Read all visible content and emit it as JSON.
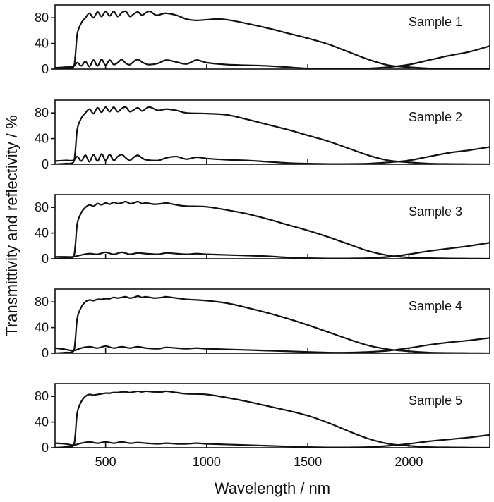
{
  "chart_data": {
    "type": "line",
    "xlabel": "Wavelength / nm",
    "ylabel": "Transmittivity and reflectivity / %",
    "xlim": [
      250,
      2400
    ],
    "ylim": [
      0,
      100
    ],
    "xticks": [
      500,
      1000,
      1500,
      2000
    ],
    "yticks": [
      0,
      40,
      80
    ],
    "grid": false,
    "panels": [
      {
        "label": "Sample 1",
        "transmittance": {
          "x": [
            250,
            300,
            340,
            350,
            360,
            380,
            400,
            420,
            440,
            460,
            480,
            500,
            520,
            540,
            560,
            580,
            600,
            620,
            640,
            660,
            680,
            700,
            720,
            750,
            780,
            800,
            850,
            900,
            950,
            1000,
            1050,
            1100,
            1200,
            1300,
            1400,
            1500,
            1600,
            1700,
            1800,
            1900,
            2000,
            2100,
            2200,
            2300,
            2400
          ],
          "y": [
            0,
            1,
            3,
            20,
            55,
            72,
            80,
            87,
            80,
            89,
            82,
            90,
            83,
            90,
            82,
            88,
            90,
            82,
            86,
            89,
            84,
            88,
            90,
            84,
            86,
            87,
            84,
            78,
            76,
            77,
            78,
            77,
            71,
            64,
            56,
            48,
            39,
            27,
            15,
            6,
            3,
            1,
            0.5,
            0.2,
            0
          ]
        },
        "reflectance": {
          "x": [
            250,
            300,
            340,
            360,
            380,
            400,
            420,
            440,
            460,
            480,
            500,
            520,
            540,
            560,
            580,
            600,
            620,
            640,
            660,
            680,
            700,
            720,
            760,
            800,
            850,
            900,
            950,
            1000,
            1100,
            1200,
            1300,
            1400,
            1500,
            1600,
            1700,
            1800,
            1900,
            2000,
            2100,
            2200,
            2300,
            2400
          ],
          "y": [
            2,
            3,
            4,
            10,
            5,
            12,
            4,
            14,
            5,
            15,
            6,
            14,
            7,
            10,
            15,
            9,
            7,
            12,
            15,
            11,
            8,
            7,
            9,
            14,
            11,
            8,
            14,
            10,
            7,
            6,
            5,
            3,
            1,
            0.5,
            0.5,
            1,
            3,
            7,
            14,
            21,
            27,
            36
          ]
        }
      },
      {
        "label": "Sample 2",
        "transmittance": {
          "x": [
            250,
            300,
            340,
            350,
            360,
            380,
            400,
            420,
            440,
            460,
            480,
            500,
            520,
            540,
            560,
            580,
            600,
            620,
            640,
            660,
            680,
            700,
            720,
            760,
            800,
            850,
            900,
            1000,
            1100,
            1200,
            1300,
            1400,
            1500,
            1600,
            1700,
            1800,
            1900,
            2000,
            2100,
            2200,
            2300,
            2400
          ],
          "y": [
            0,
            1,
            3,
            20,
            55,
            72,
            80,
            86,
            79,
            88,
            81,
            89,
            82,
            89,
            82,
            87,
            89,
            82,
            85,
            88,
            83,
            87,
            89,
            84,
            86,
            84,
            80,
            79,
            77,
            70,
            62,
            54,
            45,
            36,
            25,
            14,
            6,
            3,
            1,
            0.5,
            0.2,
            0
          ]
        },
        "reflectance": {
          "x": [
            250,
            300,
            340,
            360,
            380,
            400,
            420,
            440,
            460,
            480,
            500,
            520,
            540,
            560,
            580,
            600,
            620,
            640,
            660,
            680,
            700,
            760,
            800,
            850,
            900,
            950,
            1000,
            1100,
            1200,
            1300,
            1400,
            1500,
            1600,
            1700,
            1800,
            1900,
            2000,
            2100,
            2200,
            2300,
            2400
          ],
          "y": [
            5,
            6,
            6,
            12,
            5,
            14,
            4,
            15,
            5,
            16,
            6,
            15,
            6,
            12,
            15,
            10,
            6,
            11,
            14,
            10,
            7,
            6,
            10,
            12,
            8,
            11,
            9,
            7,
            6,
            4,
            2,
            1,
            0.5,
            0.5,
            1,
            3,
            6,
            12,
            18,
            22,
            27
          ]
        }
      },
      {
        "label": "Sample 3",
        "transmittance": {
          "x": [
            250,
            300,
            340,
            350,
            360,
            380,
            400,
            420,
            440,
            460,
            480,
            500,
            520,
            540,
            560,
            580,
            600,
            620,
            640,
            660,
            680,
            700,
            740,
            780,
            800,
            850,
            900,
            1000,
            1100,
            1200,
            1300,
            1400,
            1500,
            1600,
            1700,
            1800,
            1900,
            2000,
            2100,
            2200,
            2300,
            2400
          ],
          "y": [
            0,
            1,
            3,
            20,
            55,
            72,
            80,
            84,
            82,
            86,
            84,
            87,
            85,
            88,
            86,
            87,
            89,
            86,
            87,
            89,
            86,
            87,
            85,
            86,
            87,
            84,
            82,
            81,
            76,
            70,
            62,
            53,
            44,
            34,
            23,
            12,
            5,
            2,
            1,
            0.5,
            0.2,
            0
          ]
        },
        "reflectance": {
          "x": [
            250,
            300,
            340,
            380,
            420,
            460,
            500,
            540,
            580,
            620,
            660,
            700,
            760,
            800,
            850,
            900,
            950,
            1000,
            1100,
            1200,
            1300,
            1400,
            1500,
            1600,
            1700,
            1800,
            1900,
            2000,
            2100,
            2200,
            2300,
            2400
          ],
          "y": [
            3,
            3,
            3,
            6,
            8,
            7,
            10,
            7,
            10,
            7,
            9,
            8,
            7,
            9,
            8,
            7,
            8,
            7,
            6,
            5,
            4,
            2,
            1,
            0.5,
            0.5,
            1,
            3,
            7,
            12,
            16,
            20,
            25
          ]
        }
      },
      {
        "label": "Sample 4",
        "transmittance": {
          "x": [
            250,
            300,
            340,
            350,
            360,
            380,
            400,
            420,
            440,
            460,
            480,
            500,
            520,
            540,
            560,
            580,
            600,
            620,
            640,
            660,
            680,
            700,
            740,
            780,
            800,
            850,
            900,
            1000,
            1100,
            1200,
            1300,
            1400,
            1500,
            1600,
            1700,
            1800,
            1900,
            2000,
            2100,
            2200,
            2300,
            2400
          ],
          "y": [
            0,
            1,
            3,
            20,
            55,
            72,
            80,
            83,
            82,
            84,
            84,
            85,
            85,
            87,
            86,
            87,
            88,
            86,
            87,
            89,
            87,
            88,
            86,
            87,
            88,
            86,
            84,
            82,
            78,
            71,
            63,
            54,
            44,
            33,
            22,
            12,
            6,
            3,
            1,
            0.5,
            0.2,
            0
          ]
        },
        "reflectance": {
          "x": [
            250,
            300,
            340,
            380,
            420,
            460,
            500,
            540,
            580,
            620,
            660,
            700,
            760,
            800,
            850,
            900,
            950,
            1000,
            1100,
            1200,
            1300,
            1400,
            1500,
            1600,
            1700,
            1800,
            1900,
            2000,
            2100,
            2200,
            2300,
            2400
          ],
          "y": [
            8,
            6,
            4,
            8,
            10,
            8,
            11,
            8,
            10,
            8,
            10,
            8,
            7,
            9,
            8,
            7,
            8,
            7,
            6,
            5,
            4,
            3,
            2,
            1,
            1,
            2,
            4,
            8,
            13,
            17,
            20,
            24
          ]
        }
      },
      {
        "label": "Sample 5",
        "transmittance": {
          "x": [
            250,
            300,
            340,
            350,
            360,
            380,
            400,
            420,
            440,
            460,
            480,
            500,
            520,
            540,
            560,
            580,
            600,
            620,
            640,
            660,
            680,
            700,
            740,
            780,
            800,
            850,
            900,
            1000,
            1100,
            1200,
            1300,
            1400,
            1500,
            1600,
            1700,
            1800,
            1900,
            2000,
            2100,
            2200,
            2300,
            2400
          ],
          "y": [
            0,
            1,
            3,
            20,
            55,
            72,
            80,
            83,
            82,
            83,
            84,
            85,
            85,
            86,
            86,
            87,
            87,
            86,
            87,
            88,
            87,
            88,
            87,
            87,
            88,
            86,
            84,
            83,
            78,
            72,
            65,
            58,
            50,
            39,
            26,
            14,
            6,
            3,
            1,
            0.5,
            0.2,
            0
          ]
        },
        "reflectance": {
          "x": [
            250,
            300,
            340,
            380,
            420,
            460,
            500,
            540,
            580,
            620,
            660,
            700,
            760,
            800,
            850,
            900,
            950,
            1000,
            1100,
            1200,
            1300,
            1400,
            1500,
            1600,
            1700,
            1800,
            1900,
            2000,
            2100,
            2200,
            2300,
            2400
          ],
          "y": [
            7,
            6,
            4,
            7,
            9,
            7,
            9,
            7,
            9,
            7,
            8,
            7,
            6,
            7,
            6,
            6,
            7,
            6,
            5,
            4,
            3,
            2,
            1,
            0.5,
            0.5,
            1,
            3,
            6,
            10,
            13,
            16,
            20
          ]
        }
      }
    ]
  }
}
